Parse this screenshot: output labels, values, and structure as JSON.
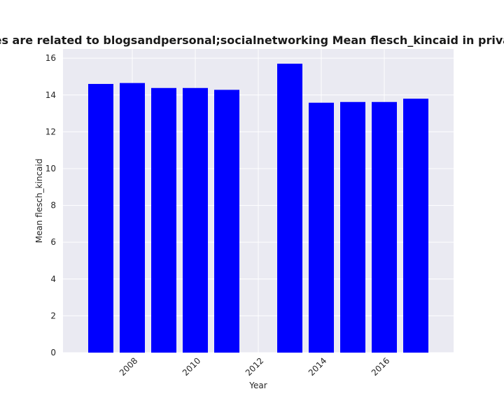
{
  "chart_data": {
    "type": "bar",
    "title": "Categories are related to blogsandpersonal;socialnetworking Mean flesch_kincaid in privacy policies",
    "xlabel": "Year",
    "ylabel": "Mean flesch_kincaid",
    "x": [
      2007,
      2008,
      2009,
      2010,
      2011,
      2013,
      2014,
      2015,
      2016,
      2017
    ],
    "values": [
      14.6,
      14.65,
      14.38,
      14.38,
      14.28,
      15.7,
      13.58,
      13.62,
      13.62,
      13.8
    ],
    "xlim": [
      2005.8,
      2018.2
    ],
    "ylim": [
      0,
      16.5
    ],
    "xticks": [
      2008,
      2010,
      2012,
      2014,
      2016
    ],
    "yticks": [
      0,
      2,
      4,
      6,
      8,
      10,
      12,
      14,
      16
    ],
    "grid": true,
    "bar_color": "#0000ff",
    "background_color": "#eaeaf2"
  }
}
